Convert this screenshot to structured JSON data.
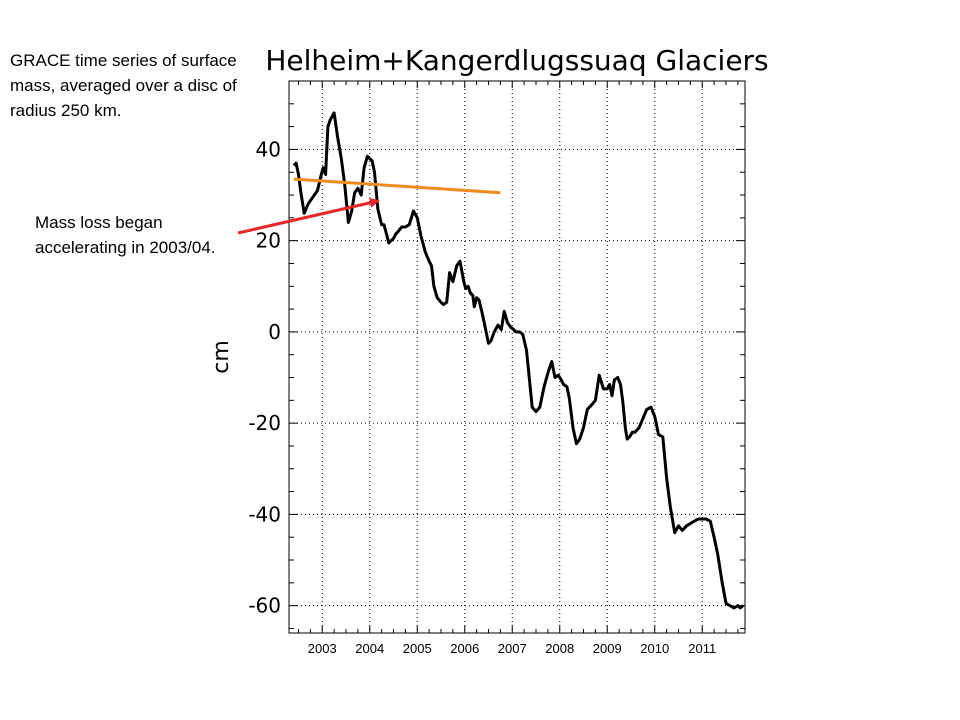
{
  "annotations": {
    "description": "GRACE time series of surface mass, averaged over a disc of radius 250 km.",
    "acceleration_note": "Mass loss began accelerating in 2003/04."
  },
  "colors": {
    "series": "#000000",
    "trend_line": "#f08a1c",
    "arrow": "#e8262a",
    "grid": "#000000"
  },
  "chart_data": {
    "type": "line",
    "title": "Helheim+Kangerdlugssuaq Glaciers",
    "xlabel": "",
    "ylabel": "cm",
    "xlim": [
      2002.3,
      2011.9
    ],
    "ylim": [
      -66,
      55
    ],
    "xticks": [
      2003,
      2004,
      2005,
      2006,
      2007,
      2008,
      2009,
      2010,
      2011
    ],
    "xtick_labels": [
      "2003",
      "2004",
      "2005",
      "2006",
      "2007",
      "2008",
      "2009",
      "2010",
      "2011"
    ],
    "yticks": [
      40,
      20,
      0,
      -20,
      -40,
      -60
    ],
    "ytick_labels": [
      "40",
      "20",
      "0",
      "-20",
      "-40",
      "-60"
    ],
    "grid": true,
    "series": [
      {
        "x": [
          2002.4,
          2002.45,
          2002.5,
          2002.55,
          2002.62,
          2002.7,
          2002.8,
          2002.9,
          2002.98,
          2003.02,
          2003.07,
          2003.12,
          2003.17,
          2003.25,
          2003.32,
          2003.4,
          2003.47,
          2003.55,
          2003.62,
          2003.68,
          2003.75,
          2003.82,
          2003.88,
          2003.95,
          2004.05,
          2004.1,
          2004.17,
          2004.25,
          2004.3,
          2004.35,
          2004.4,
          2004.45,
          2004.5,
          2004.55,
          2004.6,
          2004.67,
          2004.75,
          2004.83,
          2004.92,
          2005.0,
          2005.08,
          2005.17,
          2005.25,
          2005.3,
          2005.35,
          2005.42,
          2005.5,
          2005.55,
          2005.62,
          2005.68,
          2005.75,
          2005.83,
          2005.9,
          2005.98,
          2006.02,
          2006.07,
          2006.12,
          2006.17,
          2006.2,
          2006.25,
          2006.3,
          2006.37,
          2006.42,
          2006.5,
          2006.55,
          2006.62,
          2006.7,
          2006.77,
          2006.83,
          2006.9,
          2006.97,
          2007.03,
          2007.08,
          2007.15,
          2007.22,
          2007.3,
          2007.42,
          2007.5,
          2007.58,
          2007.67,
          2007.75,
          2007.83,
          2007.9,
          2007.97,
          2008.03,
          2008.08,
          2008.15,
          2008.2,
          2008.28,
          2008.35,
          2008.42,
          2008.5,
          2008.58,
          2008.67,
          2008.75,
          2008.83,
          2008.92,
          2009.0,
          2009.05,
          2009.1,
          2009.15,
          2009.22,
          2009.28,
          2009.33,
          2009.38,
          2009.42,
          2009.47,
          2009.53,
          2009.58,
          2009.67,
          2009.75,
          2009.83,
          2009.92,
          2010.0,
          2010.08,
          2010.17,
          2010.25,
          2010.33,
          2010.42,
          2010.5,
          2010.58,
          2010.67,
          2010.75,
          2010.83,
          2010.92,
          2011.0,
          2011.08,
          2011.17,
          2011.25,
          2011.33,
          2011.42,
          2011.5,
          2011.58,
          2011.67,
          2011.75,
          2011.8,
          2011.86
        ],
        "y": [
          36.5,
          37.0,
          34.5,
          30.5,
          26.0,
          28.0,
          29.5,
          31.0,
          34.5,
          36.0,
          34.5,
          45.0,
          46.5,
          48.0,
          43.0,
          38.0,
          32.5,
          24.0,
          26.5,
          30.5,
          31.5,
          30.0,
          36.0,
          38.5,
          37.5,
          35.0,
          27.0,
          23.5,
          23.5,
          21.5,
          19.5,
          20.0,
          20.5,
          21.5,
          22.0,
          23.0,
          23.0,
          23.5,
          26.5,
          25.0,
          21.0,
          17.5,
          15.5,
          14.5,
          10.0,
          7.5,
          6.5,
          6.0,
          6.5,
          13.0,
          11.0,
          14.5,
          15.5,
          11.0,
          9.5,
          10.0,
          8.5,
          8.0,
          5.5,
          7.5,
          7.0,
          4.0,
          1.5,
          -2.5,
          -2.0,
          0.0,
          1.5,
          0.5,
          4.5,
          2.0,
          1.0,
          0.5,
          0.0,
          0.0,
          -0.5,
          -4.0,
          -16.5,
          -17.5,
          -16.5,
          -12.0,
          -9.0,
          -6.5,
          -10.0,
          -9.5,
          -10.5,
          -11.5,
          -12.0,
          -14.5,
          -21.0,
          -24.5,
          -23.5,
          -21.0,
          -17.0,
          -16.0,
          -15.0,
          -9.5,
          -12.5,
          -12.5,
          -11.5,
          -14.0,
          -10.5,
          -10.0,
          -11.5,
          -15.5,
          -21.0,
          -23.5,
          -23.0,
          -22.0,
          -22.0,
          -21.0,
          -19.0,
          -17.0,
          -16.5,
          -18.5,
          -22.5,
          -23.0,
          -32.0,
          -38.5,
          -44.0,
          -42.5,
          -43.5,
          -42.5,
          -42.0,
          -41.5,
          -41.0,
          -41.0,
          -41.0,
          -41.5,
          -45.0,
          -49.0,
          -55.0,
          -59.5,
          -60.0,
          -60.5,
          -60.0,
          -60.5,
          -60.0
        ]
      }
    ],
    "trend_line": {
      "x": [
        2002.4,
        2006.75
      ],
      "y": [
        33.5,
        30.5
      ]
    }
  }
}
